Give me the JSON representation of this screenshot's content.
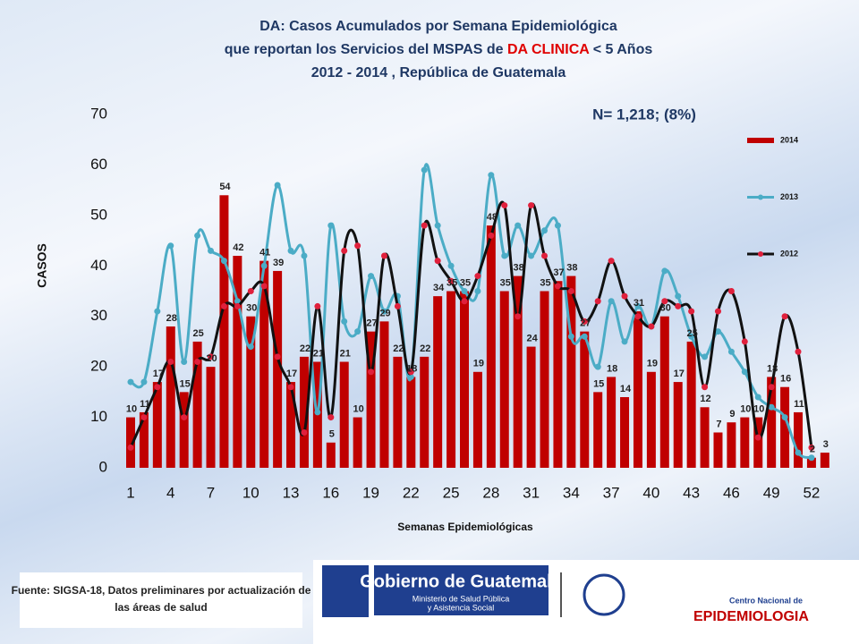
{
  "title_lines": [
    [
      "DA: Casos Acumulados por Semana Epidemiológica"
    ],
    [
      "que reportan los Servicios del MSPAS de ",
      "DA CLINICA",
      " < 5 Años"
    ],
    [
      "2012 - 2014 , República de Guatemala"
    ]
  ],
  "title_highlight_color": "#e00000",
  "chart_data": {
    "type": "bar",
    "annotation": "N= 1,218; (8%)",
    "x_label": "Semanas Epidemiológicas",
    "y_label": "CASOS",
    "categories": [
      "1",
      null,
      null,
      "4",
      null,
      null,
      "7",
      null,
      null,
      "10",
      null,
      null,
      "13",
      null,
      null,
      "16",
      null,
      null,
      "19",
      null,
      null,
      "22",
      null,
      null,
      "25",
      null,
      null,
      "28",
      null,
      null,
      "31",
      null,
      null,
      "34",
      null,
      null,
      "37",
      null,
      null,
      "40",
      null,
      null,
      "43",
      null,
      null,
      "46",
      null,
      null,
      "49",
      null,
      null,
      "52",
      null
    ],
    "ylim": [
      0,
      70
    ],
    "yticks": [
      0,
      10,
      20,
      30,
      40,
      50,
      60,
      70
    ],
    "series": [
      {
        "name": "2014",
        "type": "bar",
        "color": "#c00000",
        "data_labels": true,
        "values": [
          10,
          11,
          17,
          28,
          15,
          25,
          20,
          54,
          42,
          30,
          41,
          39,
          17,
          22,
          21,
          5,
          21,
          10,
          27,
          29,
          22,
          18,
          22,
          34,
          35,
          35,
          19,
          48,
          35,
          38,
          24,
          35,
          37,
          38,
          27,
          15,
          18,
          14,
          31,
          19,
          30,
          17,
          25,
          12,
          7,
          9,
          10,
          10,
          18,
          16,
          11,
          2,
          3
        ]
      },
      {
        "name": "2013",
        "type": "line",
        "color": "#4bacc6",
        "marker_color": "#4bacc6",
        "values": [
          17,
          17,
          31,
          44,
          21,
          46,
          43,
          41,
          33,
          24,
          40,
          56,
          43,
          42,
          11,
          48,
          29,
          27,
          38,
          31,
          34,
          18,
          59,
          48,
          40,
          35,
          35,
          58,
          42,
          48,
          42,
          47,
          48,
          26,
          26,
          20,
          33,
          25,
          32,
          28,
          39,
          34,
          26,
          22,
          27,
          23,
          19,
          14,
          12,
          10,
          3,
          2,
          null
        ]
      },
      {
        "name": "2012",
        "type": "line",
        "color": "#111111",
        "marker_color": "#e0203c",
        "values": [
          4,
          10,
          16,
          21,
          10,
          21,
          22,
          32,
          32,
          35,
          36,
          22,
          16,
          7,
          32,
          10,
          43,
          44,
          19,
          42,
          32,
          19,
          48,
          41,
          37,
          33,
          38,
          46,
          52,
          30,
          52,
          42,
          36,
          35,
          29,
          33,
          41,
          34,
          30,
          28,
          33,
          32,
          31,
          16,
          31,
          35,
          25,
          6,
          16,
          30,
          23,
          4,
          null
        ]
      }
    ]
  },
  "source": "Fuente: SIGSA-18, Datos preliminares por actualización de las áreas de salud",
  "logos": {
    "gov": "Gobierno de Guatemala",
    "ministry_1": "Ministerio de Salud Pública",
    "ministry_2": "y Asistencia Social",
    "center": "Centro Nacional de",
    "center_main": "EPIDEMIOLOGIA"
  }
}
